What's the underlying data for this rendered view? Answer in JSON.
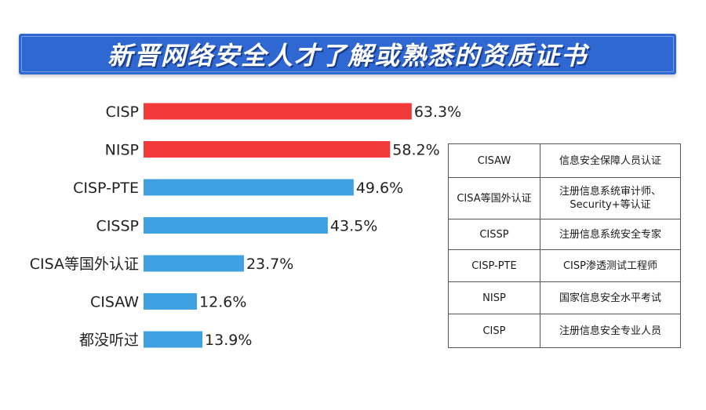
{
  "title": "新晋网络安全人才了解或熟悉的资质证书",
  "chart_data": {
    "type": "bar",
    "orientation": "horizontal",
    "categories": [
      "CISP",
      "NISP",
      "CISP-PTE",
      "CISSP",
      "CISA等国外认证",
      "CISAW",
      "都没听过"
    ],
    "values": [
      63.3,
      58.2,
      49.6,
      43.5,
      23.7,
      12.6,
      13.9
    ],
    "value_labels": [
      "63.3%",
      "58.2%",
      "49.6%",
      "43.5%",
      "23.7%",
      "12.6%",
      "13.9%"
    ],
    "bar_colors": [
      "#f23a3a",
      "#f23a3a",
      "#3fa2e0",
      "#3fa2e0",
      "#3fa2e0",
      "#3fa2e0",
      "#3fa2e0"
    ],
    "xlim": [
      0,
      100
    ],
    "grid": false
  },
  "legend_table": [
    {
      "cert": "CISAW",
      "desc": [
        "信息安全保障人员认证"
      ]
    },
    {
      "cert": "CISA等国外认证",
      "desc": [
        "注册信息系统审计师、",
        "Security+等认证"
      ]
    },
    {
      "cert": "CISSP",
      "desc": [
        "注册信息系统安全专家"
      ]
    },
    {
      "cert": "CISP-PTE",
      "desc": [
        "CISP渗透测试工程师"
      ]
    },
    {
      "cert": "NISP",
      "desc": [
        "国家信息安全水平考试"
      ]
    },
    {
      "cert": "CISP",
      "desc": [
        "注册信息安全专业人员"
      ]
    }
  ]
}
